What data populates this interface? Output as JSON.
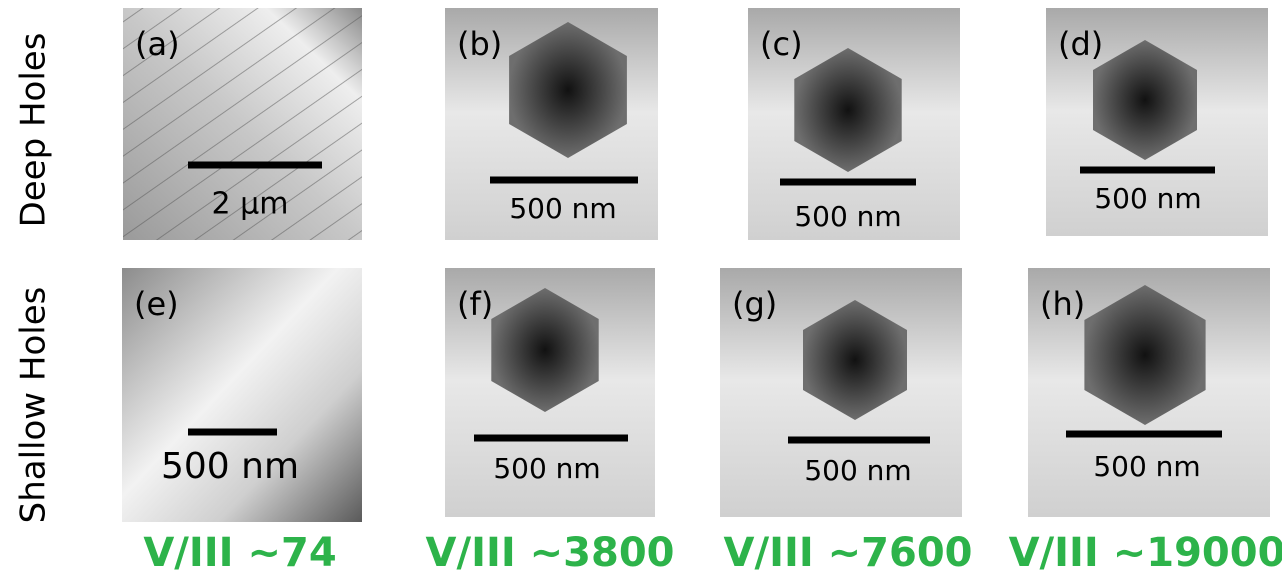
{
  "rows": [
    {
      "label": "Deep Holes"
    },
    {
      "label": "Shallow Holes"
    }
  ],
  "panels": [
    {
      "label": "(a)",
      "scale": "2 µm"
    },
    {
      "label": "(b)",
      "scale": "500 nm"
    },
    {
      "label": "(c)",
      "scale": "500 nm"
    },
    {
      "label": "(d)",
      "scale": "500 nm"
    },
    {
      "label": "(e)",
      "scale": "500 nm"
    },
    {
      "label": "(f)",
      "scale": "500 nm"
    },
    {
      "label": "(g)",
      "scale": "500 nm"
    },
    {
      "label": "(h)",
      "scale": "500 nm"
    }
  ],
  "columns": [
    {
      "caption": "V/III ~74"
    },
    {
      "caption": "V/III ~3800"
    },
    {
      "caption": "V/III ~7600"
    },
    {
      "caption": "V/III ~19000"
    }
  ]
}
